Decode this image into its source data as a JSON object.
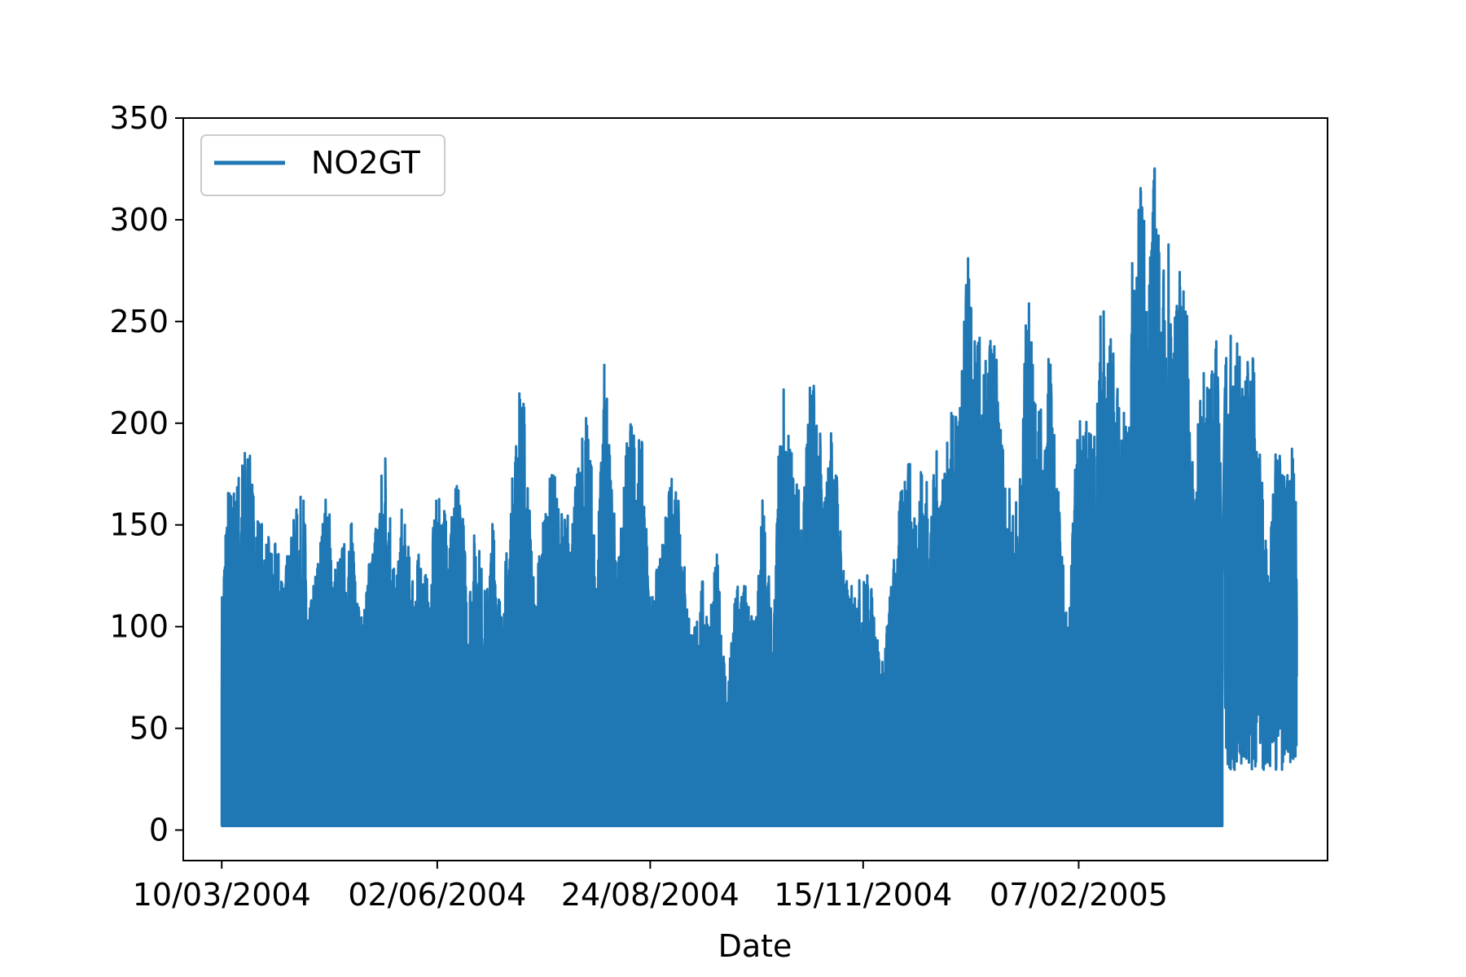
{
  "chart_data": {
    "type": "line",
    "title": "",
    "xlabel": "Date",
    "ylabel": "",
    "x_tick_labels": [
      "10/03/2004",
      "02/06/2004",
      "24/08/2004",
      "15/11/2004",
      "07/02/2005"
    ],
    "x_ticks": [
      "2004-03-10",
      "2004-06-02",
      "2004-08-24",
      "2004-11-15",
      "2005-02-07"
    ],
    "xlim": [
      "2004-02-24",
      "2005-05-15"
    ],
    "y_tick_labels": [
      "0",
      "50",
      "100",
      "150",
      "200",
      "250",
      "300",
      "350"
    ],
    "ylim": [
      -15,
      350
    ],
    "grid": false,
    "legend": {
      "position": "top-left",
      "entries": [
        "NO2GT"
      ]
    },
    "series": [
      {
        "name": "NO2GT",
        "color": "#1f77b4",
        "x_range": [
          "2004-03-10",
          "2005-04-04"
        ],
        "min": 2,
        "envelope": [
          [
            "2004-03-10",
            115
          ],
          [
            "2004-03-12",
            172
          ],
          [
            "2004-03-15",
            170
          ],
          [
            "2004-03-18",
            187
          ],
          [
            "2004-03-20",
            194
          ],
          [
            "2004-03-23",
            165
          ],
          [
            "2004-03-27",
            146
          ],
          [
            "2004-03-31",
            141
          ],
          [
            "2004-04-04",
            134
          ],
          [
            "2004-04-08",
            159
          ],
          [
            "2004-04-11",
            168
          ],
          [
            "2004-04-13",
            106
          ],
          [
            "2004-04-16",
            134
          ],
          [
            "2004-04-20",
            171
          ],
          [
            "2004-04-23",
            133
          ],
          [
            "2004-04-27",
            144
          ],
          [
            "2004-05-01",
            158
          ],
          [
            "2004-05-03",
            100
          ],
          [
            "2004-05-13",
            196
          ],
          [
            "2004-05-17",
            120
          ],
          [
            "2004-05-19",
            162
          ],
          [
            "2004-05-23",
            131
          ],
          [
            "2004-05-27",
            139
          ],
          [
            "2004-05-30",
            117
          ],
          [
            "2004-06-01",
            163
          ],
          [
            "2004-06-04",
            163
          ],
          [
            "2004-06-08",
            164
          ],
          [
            "2004-06-11",
            179
          ],
          [
            "2004-06-14",
            116
          ],
          [
            "2004-06-17",
            155
          ],
          [
            "2004-06-21",
            114
          ],
          [
            "2004-06-24",
            161
          ],
          [
            "2004-06-27",
            109
          ],
          [
            "2004-07-01",
            170
          ],
          [
            "2004-07-04",
            222
          ],
          [
            "2004-07-06",
            211
          ],
          [
            "2004-07-10",
            115
          ],
          [
            "2004-07-13",
            158
          ],
          [
            "2004-07-17",
            180
          ],
          [
            "2004-07-21",
            155
          ],
          [
            "2004-07-25",
            163
          ],
          [
            "2004-07-28",
            188
          ],
          [
            "2004-07-31",
            226
          ],
          [
            "2004-08-03",
            120
          ],
          [
            "2004-08-06",
            233
          ],
          [
            "2004-08-09",
            180
          ],
          [
            "2004-08-12",
            136
          ],
          [
            "2004-08-15",
            206
          ],
          [
            "2004-08-18",
            200
          ],
          [
            "2004-08-21",
            190
          ],
          [
            "2004-08-24",
            116
          ],
          [
            "2004-08-28",
            137
          ],
          [
            "2004-09-01",
            173
          ],
          [
            "2004-09-04",
            185
          ],
          [
            "2004-09-07",
            120
          ],
          [
            "2004-09-10",
            98
          ],
          [
            "2004-09-13",
            126
          ],
          [
            "2004-09-16",
            109
          ],
          [
            "2004-09-19",
            137
          ],
          [
            "2004-09-23",
            69
          ],
          [
            "2004-09-27",
            129
          ],
          [
            "2004-09-30",
            124
          ],
          [
            "2004-10-04",
            102
          ],
          [
            "2004-10-07",
            171
          ],
          [
            "2004-10-11",
            89
          ],
          [
            "2004-10-13",
            188
          ],
          [
            "2004-10-15",
            220
          ],
          [
            "2004-10-19",
            182
          ],
          [
            "2004-10-22",
            163
          ],
          [
            "2004-10-25",
            225
          ],
          [
            "2004-10-28",
            218
          ],
          [
            "2004-10-31",
            165
          ],
          [
            "2004-11-03",
            209
          ],
          [
            "2004-11-06",
            156
          ],
          [
            "2004-11-09",
            119
          ],
          [
            "2004-11-17",
            128
          ],
          [
            "2004-11-20",
            109
          ],
          [
            "2004-11-22",
            78
          ],
          [
            "2004-12-02",
            194
          ],
          [
            "2004-12-05",
            163
          ],
          [
            "2004-12-08",
            187
          ],
          [
            "2004-12-11",
            163
          ],
          [
            "2004-12-14",
            190
          ],
          [
            "2004-12-17",
            184
          ],
          [
            "2004-12-20",
            211
          ],
          [
            "2004-12-23",
            222
          ],
          [
            "2004-12-26",
            288
          ],
          [
            "2004-12-28",
            244
          ],
          [
            "2004-12-30",
            245
          ],
          [
            "2005-01-02",
            230
          ],
          [
            "2005-01-04",
            255
          ],
          [
            "2005-01-06",
            232
          ],
          [
            "2005-01-09",
            185
          ],
          [
            "2005-01-12",
            160
          ],
          [
            "2005-01-15",
            173
          ],
          [
            "2005-01-18",
            269
          ],
          [
            "2005-01-21",
            236
          ],
          [
            "2005-01-24",
            197
          ],
          [
            "2005-01-27",
            252
          ],
          [
            "2005-01-31",
            147
          ],
          [
            "2005-02-03",
            100
          ],
          [
            "2005-02-06",
            190
          ],
          [
            "2005-02-08",
            219
          ],
          [
            "2005-02-11",
            196
          ],
          [
            "2005-02-14",
            212
          ],
          [
            "2005-02-16",
            272
          ],
          [
            "2005-02-18",
            243
          ],
          [
            "2005-02-20",
            246
          ],
          [
            "2005-02-23",
            206
          ],
          [
            "2005-02-26",
            205
          ],
          [
            "2005-02-28",
            285
          ],
          [
            "2005-03-02",
            333
          ],
          [
            "2005-03-04",
            310
          ],
          [
            "2005-03-06",
            281
          ],
          [
            "2005-03-09",
            340
          ],
          [
            "2005-03-11",
            265
          ],
          [
            "2005-03-14",
            299
          ],
          [
            "2005-03-16",
            250
          ],
          [
            "2005-03-19",
            295
          ],
          [
            "2005-03-21",
            270
          ],
          [
            "2005-03-24",
            160
          ],
          [
            "2005-03-27",
            240
          ],
          [
            "2005-03-30",
            228
          ],
          [
            "2005-04-02",
            246
          ],
          [
            "2005-04-04",
            150
          ]
        ],
        "tail": {
          "x_range": [
            "2005-04-05",
            "2005-05-03"
          ],
          "min_range": [
            29,
            95
          ],
          "envelope": [
            [
              "2005-04-05",
              240
            ],
            [
              "2005-04-07",
              248
            ],
            [
              "2005-04-10",
              241
            ],
            [
              "2005-04-13",
              232
            ],
            [
              "2005-04-16",
              232
            ],
            [
              "2005-04-19",
              185
            ],
            [
              "2005-04-22",
              128
            ],
            [
              "2005-04-25",
              193
            ],
            [
              "2005-04-28",
              174
            ],
            [
              "2005-05-01",
              190
            ],
            [
              "2005-05-03",
              165
            ]
          ]
        }
      }
    ]
  }
}
